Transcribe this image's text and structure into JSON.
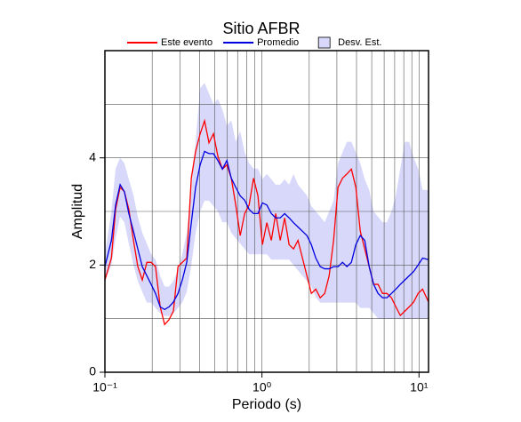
{
  "chart_data": {
    "type": "line",
    "title": "Sitio AFBR",
    "x_label": "Periodo (s)",
    "y_label": "Amplitud",
    "log_x": true,
    "grid": true,
    "xlim": [
      0.1,
      11.5
    ],
    "ylim": [
      0,
      6
    ],
    "xticks": [
      {
        "value": 0.1,
        "label": "10⁻¹"
      },
      {
        "value": 1,
        "label": "10⁰"
      },
      {
        "value": 10,
        "label": "10¹"
      }
    ],
    "yticks": [
      0,
      2,
      4
    ],
    "xgrid": [
      0.2,
      0.3,
      0.4,
      0.5,
      0.6,
      0.7,
      0.8,
      0.9,
      1,
      2,
      3,
      4,
      5,
      6,
      7,
      8,
      9,
      10
    ],
    "ygrid": [
      1,
      2,
      3,
      4,
      5
    ],
    "x": [
      0.1,
      0.11,
      0.117,
      0.125,
      0.133,
      0.142,
      0.152,
      0.162,
      0.173,
      0.185,
      0.197,
      0.21,
      0.225,
      0.24,
      0.256,
      0.273,
      0.292,
      0.311,
      0.332,
      0.355,
      0.378,
      0.404,
      0.431,
      0.46,
      0.491,
      0.524,
      0.56,
      0.598,
      0.638,
      0.681,
      0.727,
      0.776,
      0.828,
      0.884,
      0.943,
      1.007,
      1.074,
      1.147,
      1.224,
      1.307,
      1.395,
      1.489,
      1.589,
      1.696,
      1.811,
      1.933,
      2.063,
      2.202,
      2.35,
      2.509,
      2.678,
      2.859,
      3.051,
      3.257,
      3.476,
      3.711,
      3.961,
      4.228,
      4.513,
      4.817,
      5.141,
      5.488,
      5.858,
      6.252,
      6.674,
      7.124,
      7.603,
      8.116,
      8.663,
      9.247,
      9.87,
      10.54,
      11.5
    ],
    "band": {
      "name": "Desv. Est.",
      "color": "#d8d8fa",
      "upper": [
        2.2,
        3.0,
        3.8,
        4.0,
        3.9,
        3.6,
        3.3,
        2.9,
        2.6,
        2.4,
        2.2,
        2.1,
        1.8,
        1.6,
        1.6,
        1.7,
        1.9,
        2.2,
        2.6,
        3.4,
        4.3,
        5.3,
        5.4,
        5.2,
        5.0,
        5.1,
        4.9,
        4.6,
        4.7,
        4.3,
        4.5,
        4.1,
        3.9,
        3.8,
        3.8,
        3.6,
        3.7,
        3.6,
        3.5,
        3.5,
        3.6,
        3.5,
        3.7,
        3.5,
        3.4,
        3.3,
        3.1,
        3.0,
        2.9,
        2.8,
        3.0,
        3.2,
        3.9,
        4.1,
        4.3,
        4.3,
        4.1,
        3.9,
        3.6,
        3.4,
        3.0,
        2.9,
        2.8,
        2.8,
        3.0,
        3.3,
        3.8,
        4.3,
        4.3,
        4.0,
        3.8,
        3.4,
        3.4
      ],
      "lower": [
        1.7,
        2.0,
        2.5,
        2.9,
        2.8,
        2.4,
        2.0,
        1.7,
        1.5,
        1.3,
        1.3,
        1.2,
        1.1,
        1.05,
        1.05,
        1.1,
        1.2,
        1.3,
        1.5,
        2.0,
        2.6,
        3.0,
        3.2,
        3.2,
        3.1,
        3.0,
        2.8,
        2.8,
        2.6,
        2.5,
        2.4,
        2.3,
        2.2,
        2.2,
        2.2,
        2.2,
        2.2,
        2.1,
        2.1,
        2.1,
        2.1,
        2.1,
        2.0,
        1.9,
        1.8,
        1.7,
        1.6,
        1.4,
        1.3,
        1.3,
        1.3,
        1.3,
        1.3,
        1.3,
        1.3,
        1.3,
        1.3,
        1.2,
        1.2,
        1.2,
        1.1,
        1.0,
        1.0,
        1.0,
        1.0,
        1.0,
        1.0,
        1.0,
        1.0,
        1.0,
        1.0,
        1.0,
        1.0
      ]
    },
    "series": [
      {
        "name": "Este evento",
        "color": "#ff0000",
        "values": [
          1.72,
          2.13,
          3.04,
          3.45,
          3.37,
          3.04,
          2.46,
          1.97,
          1.72,
          2.05,
          2.05,
          1.97,
          1.22,
          0.89,
          0.98,
          1.14,
          1.97,
          2.05,
          2.13,
          3.62,
          4.12,
          4.45,
          4.69,
          4.28,
          4.45,
          4.03,
          3.79,
          3.87,
          3.62,
          3.12,
          2.55,
          2.96,
          3.12,
          3.62,
          3.29,
          2.38,
          2.79,
          2.46,
          2.96,
          2.46,
          2.88,
          2.38,
          2.3,
          2.46,
          2.13,
          1.8,
          1.47,
          1.55,
          1.39,
          1.47,
          1.8,
          2.46,
          3.45,
          3.62,
          3.7,
          3.79,
          3.45,
          2.63,
          2.3,
          1.97,
          1.64,
          1.64,
          1.47,
          1.47,
          1.39,
          1.22,
          1.06,
          1.14,
          1.22,
          1.31,
          1.47,
          1.55,
          1.31
        ]
      },
      {
        "name": "Promedio",
        "color": "#0000e0",
        "values": [
          1.97,
          2.46,
          3.12,
          3.5,
          3.37,
          2.96,
          2.63,
          2.3,
          1.97,
          1.8,
          1.64,
          1.47,
          1.22,
          1.17,
          1.22,
          1.31,
          1.47,
          1.72,
          2.05,
          2.79,
          3.45,
          3.87,
          4.12,
          4.08,
          4.08,
          3.95,
          3.79,
          3.95,
          3.62,
          3.45,
          3.29,
          3.21,
          3.04,
          2.96,
          2.96,
          3.16,
          3.12,
          2.96,
          2.88,
          2.88,
          2.96,
          2.88,
          2.79,
          2.71,
          2.63,
          2.55,
          2.38,
          2.13,
          1.97,
          1.93,
          1.93,
          1.97,
          1.97,
          2.05,
          1.97,
          2.05,
          2.38,
          2.55,
          2.46,
          1.97,
          1.64,
          1.47,
          1.39,
          1.39,
          1.47,
          1.55,
          1.64,
          1.72,
          1.8,
          1.88,
          2.0,
          2.13,
          2.1
        ]
      }
    ]
  }
}
